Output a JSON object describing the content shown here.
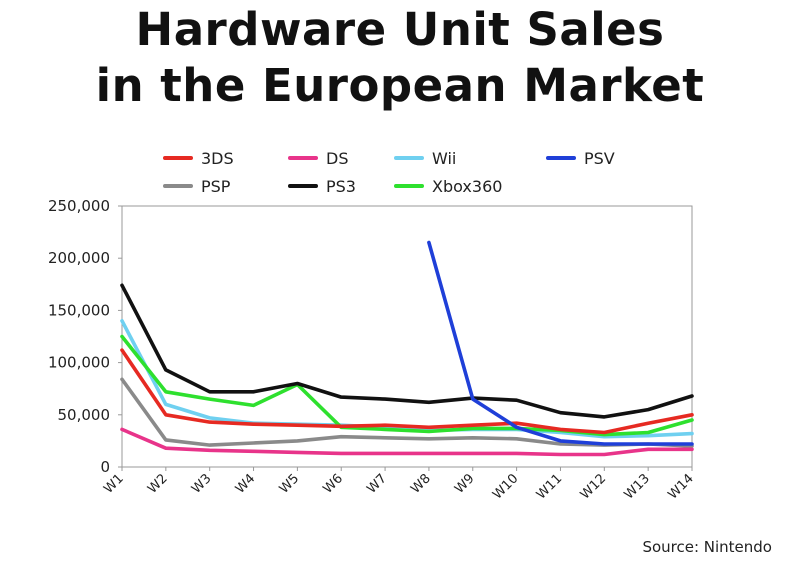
{
  "page": {
    "title_line1": "Hardware Unit Sales",
    "title_line2": "in the European Market",
    "source": "Source: Nintendo"
  },
  "chart_data": {
    "type": "line",
    "title": "Hardware Unit Sales in the European Market",
    "xlabel": "",
    "ylabel": "",
    "categories": [
      "W1",
      "W2",
      "W3",
      "W4",
      "W5",
      "W6",
      "W7",
      "W8",
      "W9",
      "W10",
      "W11",
      "W12",
      "W13",
      "W14"
    ],
    "ylim": [
      0,
      250000
    ],
    "yticks": [
      0,
      50000,
      100000,
      150000,
      200000,
      250000
    ],
    "ytick_labels": [
      "0",
      "50,000",
      "100,000",
      "150,000",
      "200,000",
      "250,000"
    ],
    "grid": false,
    "legend_placement": "top",
    "series": [
      {
        "name": "3DS",
        "color": "#e62a22",
        "values": [
          112000,
          50000,
          43000,
          41000,
          40000,
          39000,
          40000,
          38000,
          40000,
          42000,
          36000,
          33000,
          42000,
          50000
        ]
      },
      {
        "name": "DS",
        "color": "#e8348a",
        "values": [
          36000,
          18000,
          16000,
          15000,
          14000,
          13000,
          13000,
          13000,
          13000,
          13000,
          12000,
          12000,
          17000,
          17000
        ]
      },
      {
        "name": "Wii",
        "color": "#6fd0f0",
        "values": [
          140000,
          60000,
          47000,
          42000,
          41000,
          40000,
          38000,
          35000,
          36000,
          36000,
          33000,
          29000,
          30000,
          32000
        ]
      },
      {
        "name": "PSV",
        "color": "#1f3fd8",
        "start_index": 7,
        "values": [
          null,
          null,
          null,
          null,
          null,
          null,
          null,
          215000,
          65000,
          38000,
          25000,
          22000,
          22000,
          22000
        ]
      },
      {
        "name": "PSP",
        "color": "#8a8a8a",
        "values": [
          84000,
          26000,
          21000,
          23000,
          25000,
          29000,
          28000,
          27000,
          28000,
          27000,
          22000,
          21000,
          22000,
          20000
        ]
      },
      {
        "name": "PS3",
        "color": "#111111",
        "values": [
          174000,
          93000,
          72000,
          72000,
          80000,
          67000,
          65000,
          62000,
          66000,
          64000,
          52000,
          48000,
          55000,
          68000
        ]
      },
      {
        "name": "Xbox360",
        "color": "#2ee02e",
        "values": [
          125000,
          72000,
          65000,
          59000,
          79000,
          38000,
          36000,
          34000,
          37000,
          37000,
          35000,
          31000,
          33000,
          45000
        ]
      }
    ]
  }
}
